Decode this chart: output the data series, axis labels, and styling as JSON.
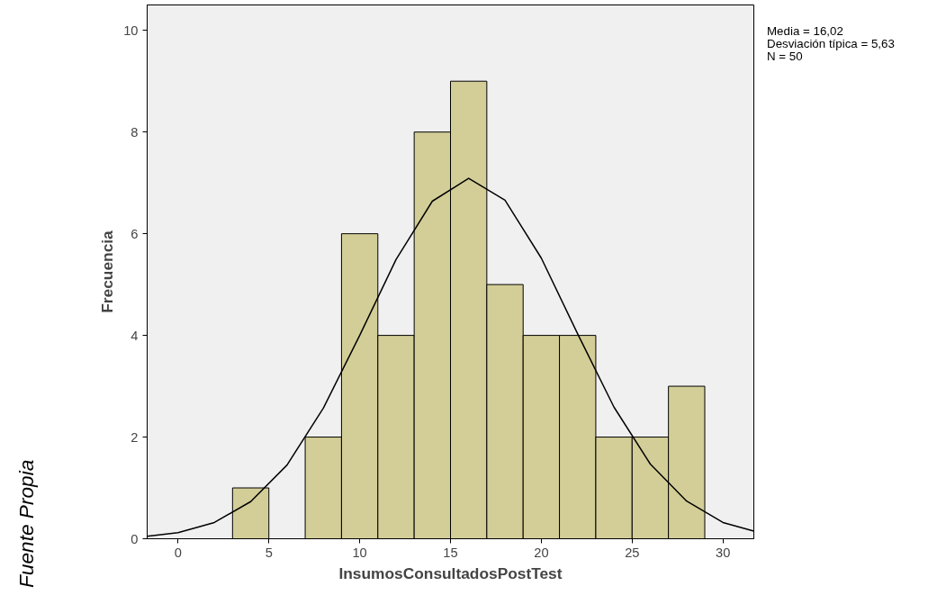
{
  "chart_data": {
    "type": "histogram",
    "bins": [
      3,
      5,
      7,
      9,
      11,
      13,
      15,
      17,
      19,
      21,
      23,
      25,
      27,
      29
    ],
    "values": [
      1,
      0,
      2,
      6,
      4,
      8,
      9,
      5,
      4,
      4,
      2,
      2,
      3
    ],
    "color": "#d3ce97",
    "series": [
      {
        "type": "line",
        "color": "#000000",
        "x": [
          -1.7,
          0,
          2,
          4,
          6,
          8,
          10,
          12,
          14,
          16,
          18,
          20,
          22,
          24,
          26,
          28,
          30,
          31.7
        ],
        "values": [
          0.05,
          0.12,
          0.32,
          0.73,
          1.45,
          2.57,
          4.0,
          5.49,
          6.64,
          7.09,
          6.66,
          5.52,
          4.03,
          2.59,
          1.47,
          0.74,
          0.32,
          0.15
        ]
      }
    ],
    "xlabel": "InsumosConsultadosPostTest",
    "ylabel": "Frecuencia",
    "xlim": [
      -1.7,
      31.7
    ],
    "ylim": [
      0,
      10.5
    ],
    "xticks": [
      0,
      5,
      10,
      15,
      20,
      25,
      30
    ],
    "yticks": [
      0,
      2,
      4,
      6,
      8,
      10
    ],
    "annotations": [
      "Media = 16,02",
      "Desviación típica = 5,63",
      "N = 50",
      "Fuente Propia"
    ]
  }
}
